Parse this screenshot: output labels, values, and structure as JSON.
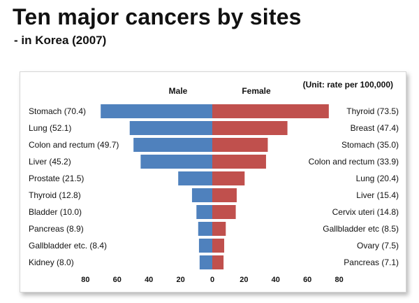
{
  "title": "Ten major cancers by sites",
  "subtitle": "- in Korea (2007)",
  "colors": {
    "male": "#4f81bd",
    "female": "#c0504d"
  },
  "chart_data": {
    "type": "bar",
    "orientation": "horizontal-diverging",
    "unit_note": "(Unit: rate per 100,000)",
    "xlim": [
      -80,
      80
    ],
    "ticks": [
      "80",
      "60",
      "40",
      "20",
      "0",
      "20",
      "40",
      "60",
      "80"
    ],
    "series": [
      {
        "name": "Male",
        "side": "left",
        "labels": [
          "Stomach (70.4)",
          "Lung (52.1)",
          "Colon and rectum (49.7)",
          "Liver (45.2)",
          "Prostate (21.5)",
          "Thyroid (12.8)",
          "Bladder (10.0)",
          "Pancreas (8.9)",
          "Gallbladder etc. (8.4)",
          "Kidney (8.0)"
        ],
        "values": [
          70.4,
          52.1,
          49.7,
          45.2,
          21.5,
          12.8,
          10.0,
          8.9,
          8.4,
          8.0
        ]
      },
      {
        "name": "Female",
        "side": "right",
        "labels": [
          "Thyroid (73.5)",
          "Breast (47.4)",
          "Stomach (35.0)",
          "Colon and rectum (33.9)",
          "Lung (20.4)",
          "Liver (15.4)",
          "Cervix uteri (14.8)",
          "Gallbladder etc (8.5)",
          "Ovary (7.5)",
          "Pancreas (7.1)"
        ],
        "values": [
          73.5,
          47.4,
          35.0,
          33.9,
          20.4,
          15.4,
          14.8,
          8.5,
          7.5,
          7.1
        ]
      }
    ]
  }
}
